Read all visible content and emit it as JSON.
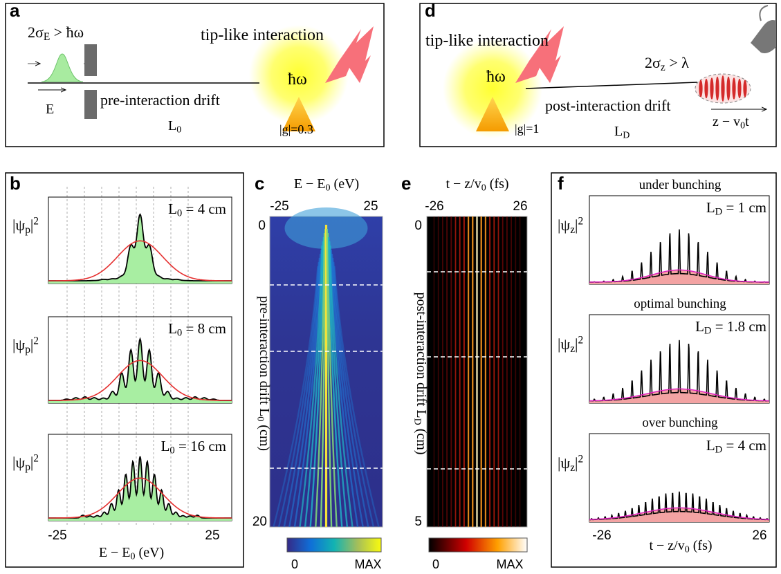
{
  "panel_a": {
    "label": "a",
    "condition": [
      "2σ",
      "E",
      " > ħω"
    ],
    "interaction": "tip-like interaction",
    "photon": "ħω",
    "energy_axis": "E",
    "drift": "pre-interaction drift",
    "drift_length": [
      "L",
      "0"
    ],
    "coupling": "|g|=0.3"
  },
  "panel_d": {
    "label": "d",
    "interaction": "tip-like interaction",
    "photon": "ħω",
    "condition": [
      "2σ",
      "z",
      " > λ"
    ],
    "drift": "post-interaction drift",
    "drift_length": [
      "L",
      "D"
    ],
    "coupling": "|g|=1",
    "position_axis": [
      "z − v",
      "0",
      "t"
    ]
  },
  "panel_b": {
    "label": "b",
    "subplots": [
      {
        "ylabel": [
          "|ψ",
          "p",
          "|",
          "2"
        ],
        "annotation": [
          "L",
          "0",
          " = 4 cm"
        ]
      },
      {
        "ylabel": [
          "|ψ",
          "p",
          "|",
          "2"
        ],
        "annotation": [
          "L",
          "0",
          " = 8 cm"
        ]
      },
      {
        "ylabel": [
          "|ψ",
          "p",
          "|",
          "2"
        ],
        "annotation": [
          "L",
          "0",
          " = 16 cm"
        ]
      }
    ],
    "xticks": [
      "-25",
      "25"
    ],
    "xlabel": [
      "E − E",
      "0",
      " (eV)"
    ]
  },
  "panel_c": {
    "label": "c",
    "title": [
      "E − E",
      "0",
      " (eV)"
    ],
    "xticks": [
      "-25",
      "25"
    ],
    "yticks": [
      "0",
      "20"
    ],
    "ylabel": [
      "pre-interaction drift  L",
      "0",
      " (cm)"
    ],
    "colorbar_ticks": [
      "0",
      "MAX"
    ]
  },
  "panel_e": {
    "label": "e",
    "title": [
      "t − z/v",
      "0",
      " (fs)"
    ],
    "xticks": [
      "-26",
      "26"
    ],
    "yticks": [
      "0",
      "5"
    ],
    "ylabel": [
      "post-interaction drift  L",
      "D",
      " (cm)"
    ],
    "colorbar_ticks": [
      "0",
      "MAX"
    ]
  },
  "panel_f": {
    "label": "f",
    "subplots": [
      {
        "title": "under bunching",
        "annotation": [
          "L",
          "D",
          " = 1 cm"
        ],
        "ylabel": [
          "|ψ",
          "z",
          "|",
          "2"
        ]
      },
      {
        "title": "optimal bunching",
        "annotation": [
          "L",
          "D",
          " = 1.8 cm"
        ],
        "ylabel": [
          "|ψ",
          "z",
          "|",
          "2"
        ]
      },
      {
        "title": "over bunching",
        "annotation": [
          "L",
          "D",
          " = 4 cm"
        ],
        "ylabel": [
          "|ψ",
          "z",
          "|",
          "2"
        ]
      }
    ],
    "xticks": [
      "-26",
      "26"
    ],
    "xlabel": [
      "t − z/v",
      "0",
      " (fs)"
    ]
  }
}
